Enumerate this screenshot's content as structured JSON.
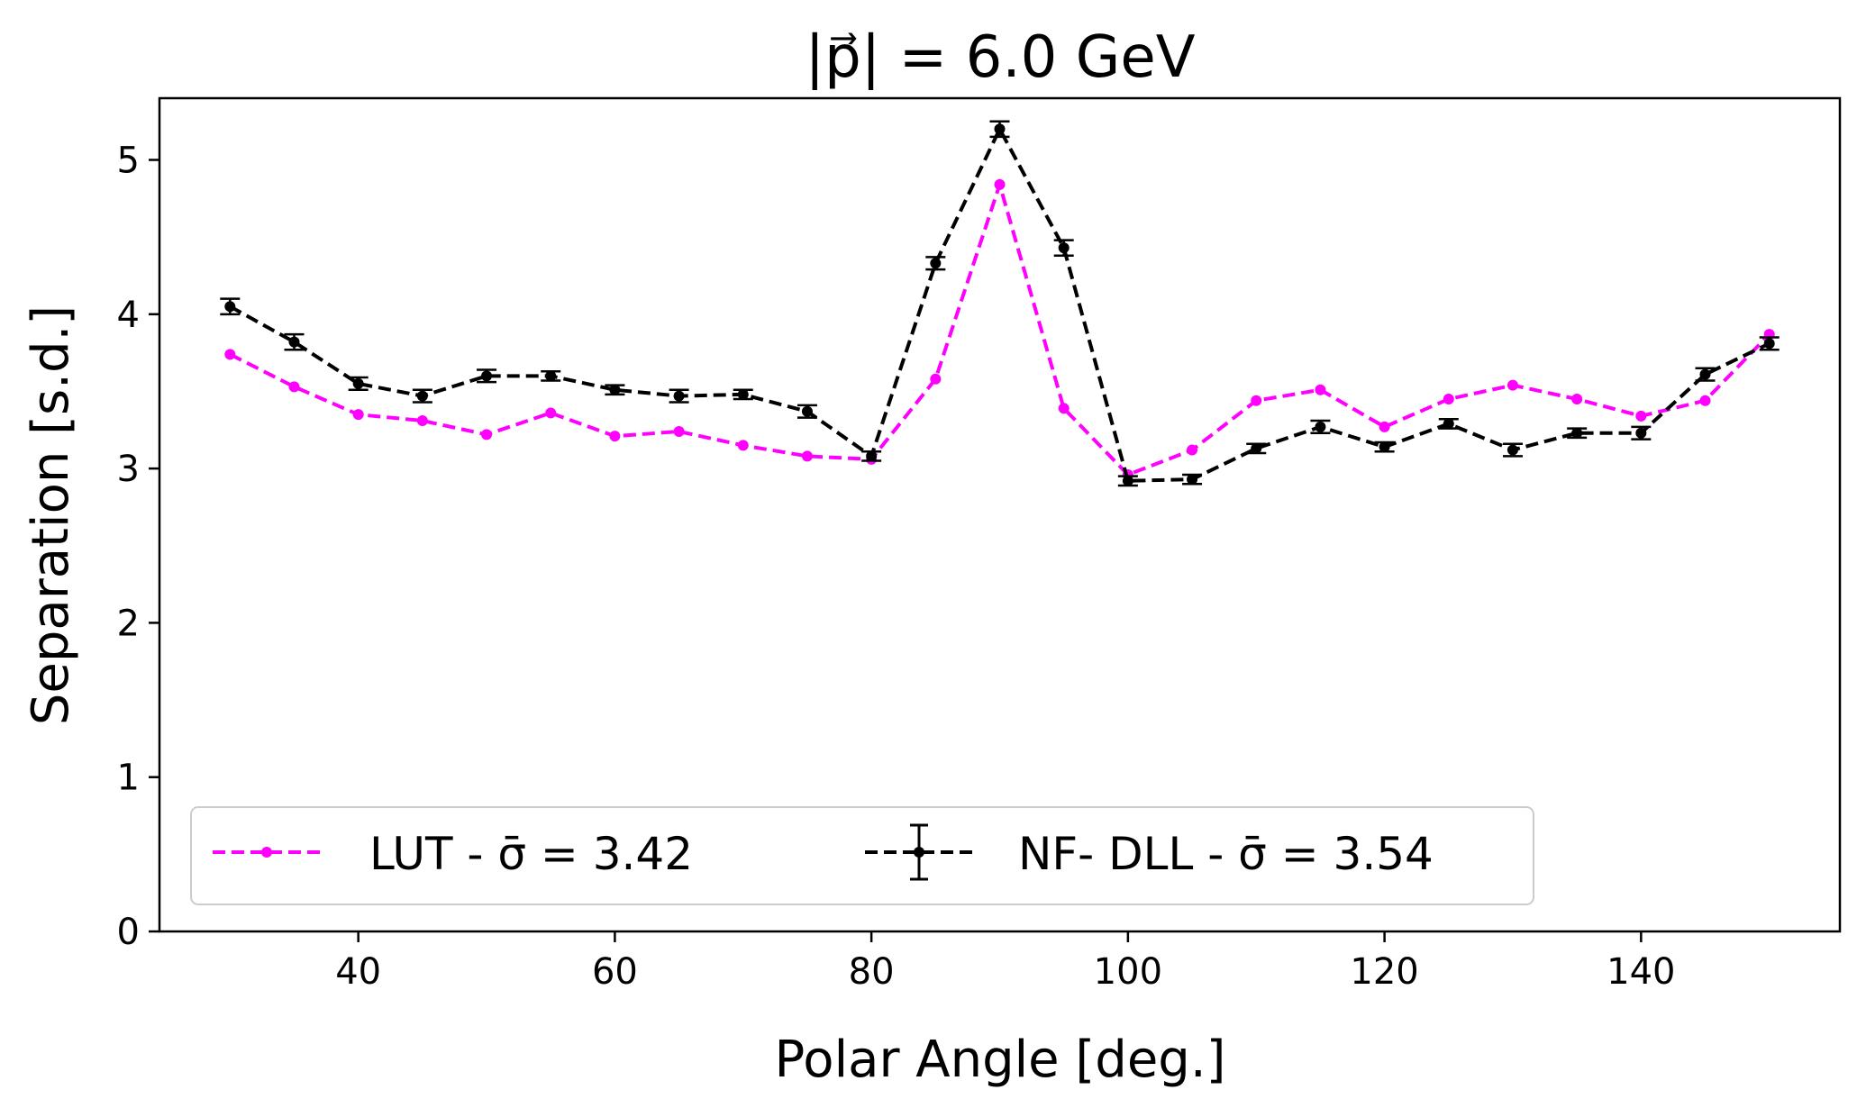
{
  "chart_data": {
    "type": "line",
    "title": "|p⃗| = 6.0 GeV",
    "xlabel": "Polar Angle [deg.]",
    "ylabel": "Separation [s.d.]",
    "xlim": [
      24.5,
      155.5
    ],
    "ylim": [
      0,
      5.4
    ],
    "xticks": [
      40,
      60,
      80,
      100,
      120,
      140
    ],
    "yticks": [
      0,
      1,
      2,
      3,
      4,
      5
    ],
    "grid": false,
    "legend_placement": "bottom-left",
    "x": [
      30,
      35,
      40,
      45,
      50,
      55,
      60,
      65,
      70,
      75,
      80,
      85,
      90,
      95,
      100,
      105,
      110,
      115,
      120,
      125,
      130,
      135,
      140,
      145,
      150
    ],
    "series": [
      {
        "name": "LUT - σ̄ = 3.42",
        "color": "#ff00ff",
        "style": "dashed",
        "marker": "circle",
        "values": [
          3.74,
          3.53,
          3.35,
          3.31,
          3.22,
          3.36,
          3.21,
          3.24,
          3.15,
          3.08,
          3.06,
          3.58,
          4.84,
          3.39,
          2.96,
          3.12,
          3.44,
          3.51,
          3.27,
          3.45,
          3.54,
          3.45,
          3.34,
          3.44,
          3.87
        ]
      },
      {
        "name": "NF- DLL - σ̄ = 3.54",
        "color": "#000000",
        "style": "dashed",
        "marker": "circle",
        "errorbars": true,
        "values": [
          4.05,
          3.82,
          3.55,
          3.47,
          3.6,
          3.6,
          3.51,
          3.47,
          3.48,
          3.37,
          3.08,
          4.33,
          5.2,
          4.43,
          2.92,
          2.93,
          3.13,
          3.27,
          3.14,
          3.29,
          3.12,
          3.23,
          3.23,
          3.61,
          3.81
        ],
        "errors": [
          0.05,
          0.05,
          0.04,
          0.04,
          0.04,
          0.03,
          0.03,
          0.04,
          0.03,
          0.04,
          0.03,
          0.04,
          0.05,
          0.05,
          0.03,
          0.03,
          0.03,
          0.04,
          0.03,
          0.03,
          0.04,
          0.03,
          0.04,
          0.04,
          0.04
        ]
      }
    ]
  }
}
